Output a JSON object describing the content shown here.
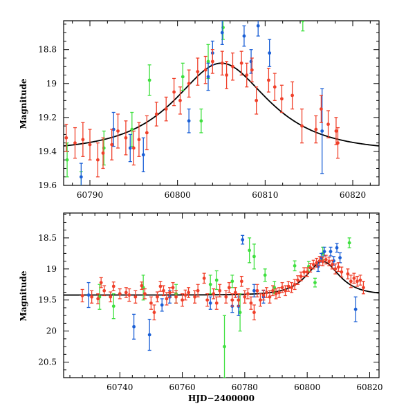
{
  "chart_data": [
    {
      "type": "scatter",
      "panel": "top",
      "xlabel": "",
      "ylabel": "Magnitude",
      "xlim": [
        60787,
        60823
      ],
      "ylim": [
        19.6,
        18.63
      ],
      "y_inverted": true,
      "xticks": [
        60790,
        60800,
        60810,
        60820
      ],
      "yticks": [
        18.8,
        19,
        19.2,
        19.4,
        19.6
      ],
      "ytick_labels": [
        "18.8",
        "19",
        "19.2",
        "19.4",
        "19.6"
      ],
      "colors": {
        "red": "#f0402a",
        "blue": "#1a5fd6",
        "green": "#3fe03f",
        "model": "#000000"
      },
      "model_curve": {
        "name": "",
        "baseline": 19.4,
        "peak_mag": 18.88,
        "t0": 60805,
        "tE": 7.5
      },
      "series": [
        {
          "color_key": "red",
          "points": [
            [
              60787.3,
              19.32,
              0.08
            ],
            [
              60788.3,
              19.35,
              0.09
            ],
            [
              60789.2,
              19.33,
              0.1
            ],
            [
              60790.0,
              19.36,
              0.09
            ],
            [
              60790.9,
              19.45,
              0.1
            ],
            [
              60791.5,
              19.41,
              0.09
            ],
            [
              60792.5,
              19.36,
              0.09
            ],
            [
              60793.2,
              19.28,
              0.1
            ],
            [
              60794.1,
              19.32,
              0.1
            ],
            [
              60795.0,
              19.38,
              0.1
            ],
            [
              60795.6,
              19.33,
              0.1
            ],
            [
              60796.5,
              19.29,
              0.1
            ],
            [
              60797.6,
              19.18,
              0.07
            ],
            [
              60798.7,
              19.15,
              0.07
            ],
            [
              60799.6,
              19.05,
              0.08
            ],
            [
              60800.3,
              19.1,
              0.08
            ],
            [
              60801.3,
              19.0,
              0.08
            ],
            [
              60802.3,
              18.93,
              0.08
            ],
            [
              60803.2,
              18.92,
              0.08
            ],
            [
              60804.0,
              18.87,
              0.07
            ],
            [
              60805.1,
              18.88,
              0.07
            ],
            [
              60805.6,
              18.95,
              0.08
            ],
            [
              60806.3,
              18.9,
              0.08
            ],
            [
              60807.3,
              18.88,
              0.07
            ],
            [
              60807.9,
              18.95,
              0.07
            ],
            [
              60808.5,
              18.92,
              0.07
            ],
            [
              60809.0,
              19.1,
              0.08
            ],
            [
              60810.4,
              18.98,
              0.07
            ],
            [
              60811.1,
              19.02,
              0.08
            ],
            [
              60811.9,
              19.09,
              0.08
            ],
            [
              60813.1,
              19.07,
              0.08
            ],
            [
              60814.2,
              19.25,
              0.1
            ],
            [
              60815.8,
              19.27,
              0.08
            ],
            [
              60816.4,
              19.15,
              0.08
            ],
            [
              60817.2,
              19.24,
              0.08
            ],
            [
              60818.1,
              19.28,
              0.08
            ],
            [
              60818.3,
              19.35,
              0.09
            ]
          ]
        },
        {
          "color_key": "blue",
          "points": [
            [
              60789.0,
              19.55,
              0.08
            ],
            [
              60792.7,
              19.27,
              0.1
            ],
            [
              60794.6,
              19.38,
              0.08
            ],
            [
              60796.1,
              19.42,
              0.1
            ],
            [
              60801.3,
              19.22,
              0.07
            ],
            [
              60803.5,
              18.96,
              0.08
            ],
            [
              60804.0,
              18.82,
              0.07
            ],
            [
              60805.1,
              18.7,
              0.07
            ],
            [
              60807.6,
              18.72,
              0.06
            ],
            [
              60808.4,
              18.87,
              0.07
            ],
            [
              60809.2,
              18.66,
              0.06
            ],
            [
              60810.5,
              18.82,
              0.08
            ],
            [
              60816.5,
              19.28,
              0.25
            ]
          ]
        },
        {
          "color_key": "green",
          "points": [
            [
              60787.4,
              19.45,
              0.1
            ],
            [
              60789.0,
              19.62,
              0.1
            ],
            [
              60791.6,
              19.38,
              0.1
            ],
            [
              60794.8,
              19.27,
              0.1
            ],
            [
              60796.8,
              18.98,
              0.09
            ],
            [
              60800.6,
              18.96,
              0.08
            ],
            [
              60802.7,
              19.22,
              0.07
            ],
            [
              60803.5,
              18.87,
              0.1
            ],
            [
              60805.2,
              18.67,
              0.07
            ],
            [
              60814.3,
              18.63,
              0.06
            ]
          ]
        }
      ]
    },
    {
      "type": "scatter",
      "panel": "bottom",
      "xlabel": "HJD−2400000",
      "ylabel": "Magnitude",
      "xlim": [
        60722,
        60823
      ],
      "ylim": [
        20.75,
        18.1
      ],
      "y_inverted": true,
      "xticks": [
        60740,
        60760,
        60780,
        60800,
        60820
      ],
      "yticks": [
        18.5,
        19,
        19.5,
        20,
        20.5
      ],
      "ytick_labels": [
        "18.5",
        "19",
        "19.5",
        "20",
        "20.5"
      ],
      "colors": {
        "red": "#f0402a",
        "blue": "#1a5fd6",
        "green": "#3fe03f",
        "model": "#000000"
      },
      "model_curve": {
        "name": "",
        "baseline": 19.42,
        "peak_mag": 18.88,
        "t0": 60805,
        "tE": 7.5
      },
      "series": [
        {
          "color_key": "red",
          "points": [
            [
              60728,
              19.43,
              0.1
            ],
            [
              60731,
              19.45,
              0.1
            ],
            [
              60733,
              19.48,
              0.08
            ],
            [
              60734,
              19.22,
              0.08
            ],
            [
              60735,
              19.35,
              0.08
            ],
            [
              60737,
              19.45,
              0.08
            ],
            [
              60738,
              19.28,
              0.07
            ],
            [
              60740,
              19.4,
              0.08
            ],
            [
              60742,
              19.38,
              0.08
            ],
            [
              60743,
              19.42,
              0.1
            ],
            [
              60745,
              19.45,
              0.1
            ],
            [
              60747,
              19.27,
              0.06
            ],
            [
              60748,
              19.4,
              0.08
            ],
            [
              60750,
              19.55,
              0.1
            ],
            [
              60751,
              19.7,
              0.12
            ],
            [
              60752,
              19.45,
              0.08
            ],
            [
              60753,
              19.28,
              0.08
            ],
            [
              60754,
              19.35,
              0.08
            ],
            [
              60755,
              19.48,
              0.1
            ],
            [
              60756,
              19.38,
              0.08
            ],
            [
              60757,
              19.3,
              0.08
            ],
            [
              60758,
              19.45,
              0.1
            ],
            [
              60760,
              19.5,
              0.1
            ],
            [
              60761,
              19.42,
              0.08
            ],
            [
              60762,
              19.38,
              0.08
            ],
            [
              60764,
              19.45,
              0.1
            ],
            [
              60765,
              19.35,
              0.1
            ],
            [
              60767,
              19.15,
              0.08
            ],
            [
              60768,
              19.5,
              0.1
            ],
            [
              60770,
              19.4,
              0.08
            ],
            [
              60771,
              19.55,
              0.1
            ],
            [
              60772,
              19.35,
              0.1
            ],
            [
              60774,
              19.45,
              0.1
            ],
            [
              60775,
              19.3,
              0.08
            ],
            [
              60776,
              19.5,
              0.1
            ],
            [
              60777,
              19.38,
              0.08
            ],
            [
              60778,
              19.5,
              0.1
            ],
            [
              60779,
              19.2,
              0.08
            ],
            [
              60780,
              19.45,
              0.1
            ],
            [
              60781,
              19.4,
              0.08
            ],
            [
              60782,
              19.55,
              0.1
            ],
            [
              60783,
              19.7,
              0.12
            ],
            [
              60784,
              19.35,
              0.1
            ],
            [
              60785,
              19.5,
              0.1
            ],
            [
              60786,
              19.42,
              0.08
            ],
            [
              60787,
              19.38,
              0.08
            ],
            [
              60788,
              19.45,
              0.1
            ],
            [
              60789,
              19.35,
              0.08
            ],
            [
              60790,
              19.4,
              0.08
            ],
            [
              60791,
              19.38,
              0.08
            ],
            [
              60792,
              19.3,
              0.08
            ],
            [
              60793,
              19.35,
              0.08
            ],
            [
              60794,
              19.28,
              0.08
            ],
            [
              60795,
              19.3,
              0.08
            ],
            [
              60796,
              19.25,
              0.08
            ],
            [
              60797,
              19.18,
              0.07
            ],
            [
              60798,
              19.12,
              0.07
            ],
            [
              60799,
              19.05,
              0.07
            ],
            [
              60800,
              19.05,
              0.07
            ],
            [
              60801,
              18.98,
              0.07
            ],
            [
              60802,
              18.93,
              0.07
            ],
            [
              60803,
              18.9,
              0.07
            ],
            [
              60804,
              18.87,
              0.07
            ],
            [
              60805,
              18.88,
              0.07
            ],
            [
              60806,
              18.85,
              0.07
            ],
            [
              60807,
              18.88,
              0.07
            ],
            [
              60808,
              18.93,
              0.07
            ],
            [
              60809,
              19.0,
              0.08
            ],
            [
              60810,
              18.97,
              0.07
            ],
            [
              60811,
              19.05,
              0.08
            ],
            [
              60813,
              19.08,
              0.08
            ],
            [
              60814,
              19.2,
              0.1
            ],
            [
              60815,
              19.15,
              0.08
            ],
            [
              60816,
              19.2,
              0.08
            ],
            [
              60817,
              19.18,
              0.08
            ],
            [
              60818,
              19.3,
              0.1
            ]
          ]
        },
        {
          "color_key": "blue",
          "points": [
            [
              60730,
              19.42,
              0.2
            ],
            [
              60744.5,
              19.93,
              0.2
            ],
            [
              60749.5,
              20.06,
              0.25
            ],
            [
              60753.5,
              19.58,
              0.1
            ],
            [
              60756,
              19.45,
              0.1
            ],
            [
              60769,
              19.55,
              0.1
            ],
            [
              60776,
              19.6,
              0.1
            ],
            [
              60778,
              19.6,
              0.15
            ],
            [
              60779.3,
              18.53,
              0.07
            ],
            [
              60783,
              19.35,
              0.1
            ],
            [
              60786,
              19.45,
              0.1
            ],
            [
              60803.5,
              18.96,
              0.08
            ],
            [
              60804.5,
              18.82,
              0.07
            ],
            [
              60805.5,
              18.72,
              0.07
            ],
            [
              60807.5,
              18.72,
              0.07
            ],
            [
              60808.5,
              18.87,
              0.07
            ],
            [
              60809.5,
              18.66,
              0.07
            ],
            [
              60810.5,
              18.82,
              0.08
            ],
            [
              60815.5,
              19.65,
              0.2
            ]
          ]
        },
        {
          "color_key": "green",
          "points": [
            [
              60733.5,
              19.45,
              0.2
            ],
            [
              60738,
              19.6,
              0.2
            ],
            [
              60747.5,
              19.3,
              0.2
            ],
            [
              60758,
              19.4,
              0.15
            ],
            [
              60769,
              19.25,
              0.15
            ],
            [
              60771,
              19.18,
              0.15
            ],
            [
              60773.5,
              20.25,
              0.5
            ],
            [
              60776,
              19.2,
              0.1
            ],
            [
              60778.5,
              19.7,
              0.3
            ],
            [
              60781.5,
              18.7,
              0.2
            ],
            [
              60783,
              18.8,
              0.2
            ],
            [
              60786.5,
              19.1,
              0.1
            ],
            [
              60789.5,
              19.3,
              0.1
            ],
            [
              60796,
              18.95,
              0.08
            ],
            [
              60800.5,
              18.96,
              0.08
            ],
            [
              60802.5,
              19.22,
              0.07
            ],
            [
              60805,
              18.75,
              0.1
            ],
            [
              60813.5,
              18.58,
              0.08
            ]
          ]
        }
      ]
    }
  ]
}
